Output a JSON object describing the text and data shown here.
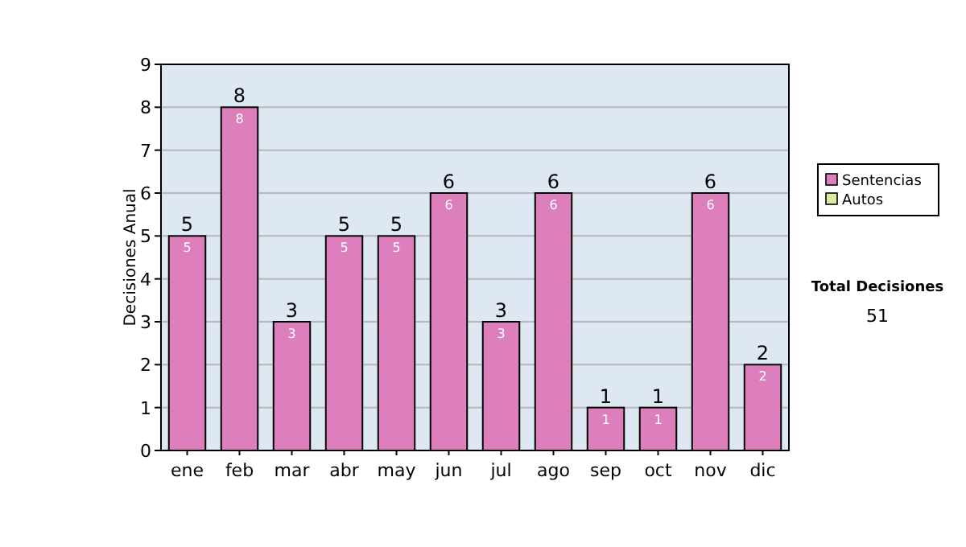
{
  "chart_data": {
    "type": "bar",
    "ylabel": "Decisiones Anual",
    "categories": [
      "ene",
      "feb",
      "mar",
      "abr",
      "may",
      "jun",
      "jul",
      "ago",
      "sep",
      "oct",
      "nov",
      "dic"
    ],
    "series": [
      {
        "name": "Sentencias",
        "color": "#dd7fbd",
        "values": [
          5,
          8,
          3,
          5,
          5,
          6,
          3,
          6,
          1,
          1,
          6,
          2
        ],
        "value_labels": [
          "5",
          "8",
          "3",
          "5",
          "5",
          "6",
          "3",
          "6",
          "1",
          "1",
          "6",
          "2"
        ]
      },
      {
        "name": "Autos",
        "color": "#d8ec9c",
        "values": [
          0,
          0,
          0,
          0,
          0,
          0,
          0,
          0,
          0,
          0,
          0,
          0
        ]
      }
    ],
    "stacked": true,
    "totals": [
      "5",
      "8",
      "3",
      "5",
      "5",
      "6",
      "3",
      "6",
      "1",
      "1",
      "6",
      "2"
    ],
    "ylim": [
      0,
      9
    ],
    "yticks": [
      0,
      1,
      2,
      3,
      4,
      5,
      6,
      7,
      8,
      9
    ],
    "grid": "y",
    "legend": "right",
    "annotations": [
      "Total Decisiones",
      "51"
    ]
  }
}
